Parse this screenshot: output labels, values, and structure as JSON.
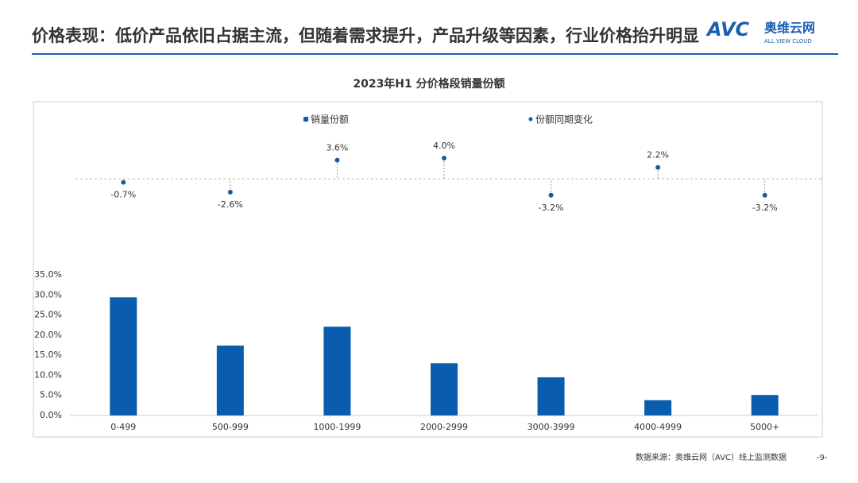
{
  "header": {
    "title": "价格表现：低价产品依旧占据主流，但随着需求提升，产品升级等因素，行业价格抬升明显",
    "logo_mark": "AVC",
    "logo_name": "奥维云网",
    "logo_sub": "ALL VIEW CLOUD"
  },
  "chart_data": {
    "type": "bar",
    "title": "2023年H1  分价格段销量份额",
    "categories": [
      "0-499",
      "500-999",
      "1000-1999",
      "2000-2999",
      "3000-3999",
      "4000-4999",
      "5000+"
    ],
    "series": [
      {
        "name": "销量份额",
        "color": "#0a5cad",
        "values": [
          29.4,
          17.4,
          22.1,
          13.0,
          9.5,
          3.8,
          5.1
        ]
      },
      {
        "name": "份额同期变化",
        "color": "#1f5b9b",
        "type": "scatter",
        "values": [
          -0.7,
          -2.6,
          3.6,
          4.0,
          -3.2,
          2.2,
          -3.2
        ],
        "value_labels": [
          "-0.7%",
          "-2.6%",
          "3.6%",
          "4.0%",
          "-3.2%",
          "2.2%",
          "-3.2%"
        ]
      }
    ],
    "ylim": [
      0,
      35
    ],
    "yticks": [
      {
        "value": 0,
        "label": "0.0%"
      },
      {
        "value": 5,
        "label": "5.0%"
      },
      {
        "value": 10,
        "label": "10.0%"
      },
      {
        "value": 15,
        "label": "15.0%"
      },
      {
        "value": 20,
        "label": "20.0%"
      },
      {
        "value": 25,
        "label": "25.0%"
      },
      {
        "value": 30,
        "label": "30.0%"
      },
      {
        "value": 35,
        "label": "35.0%"
      }
    ],
    "legend": "top"
  },
  "footer": {
    "source": "数据来源：奥维云网（AVC）线上监测数据",
    "page": "-9-"
  }
}
